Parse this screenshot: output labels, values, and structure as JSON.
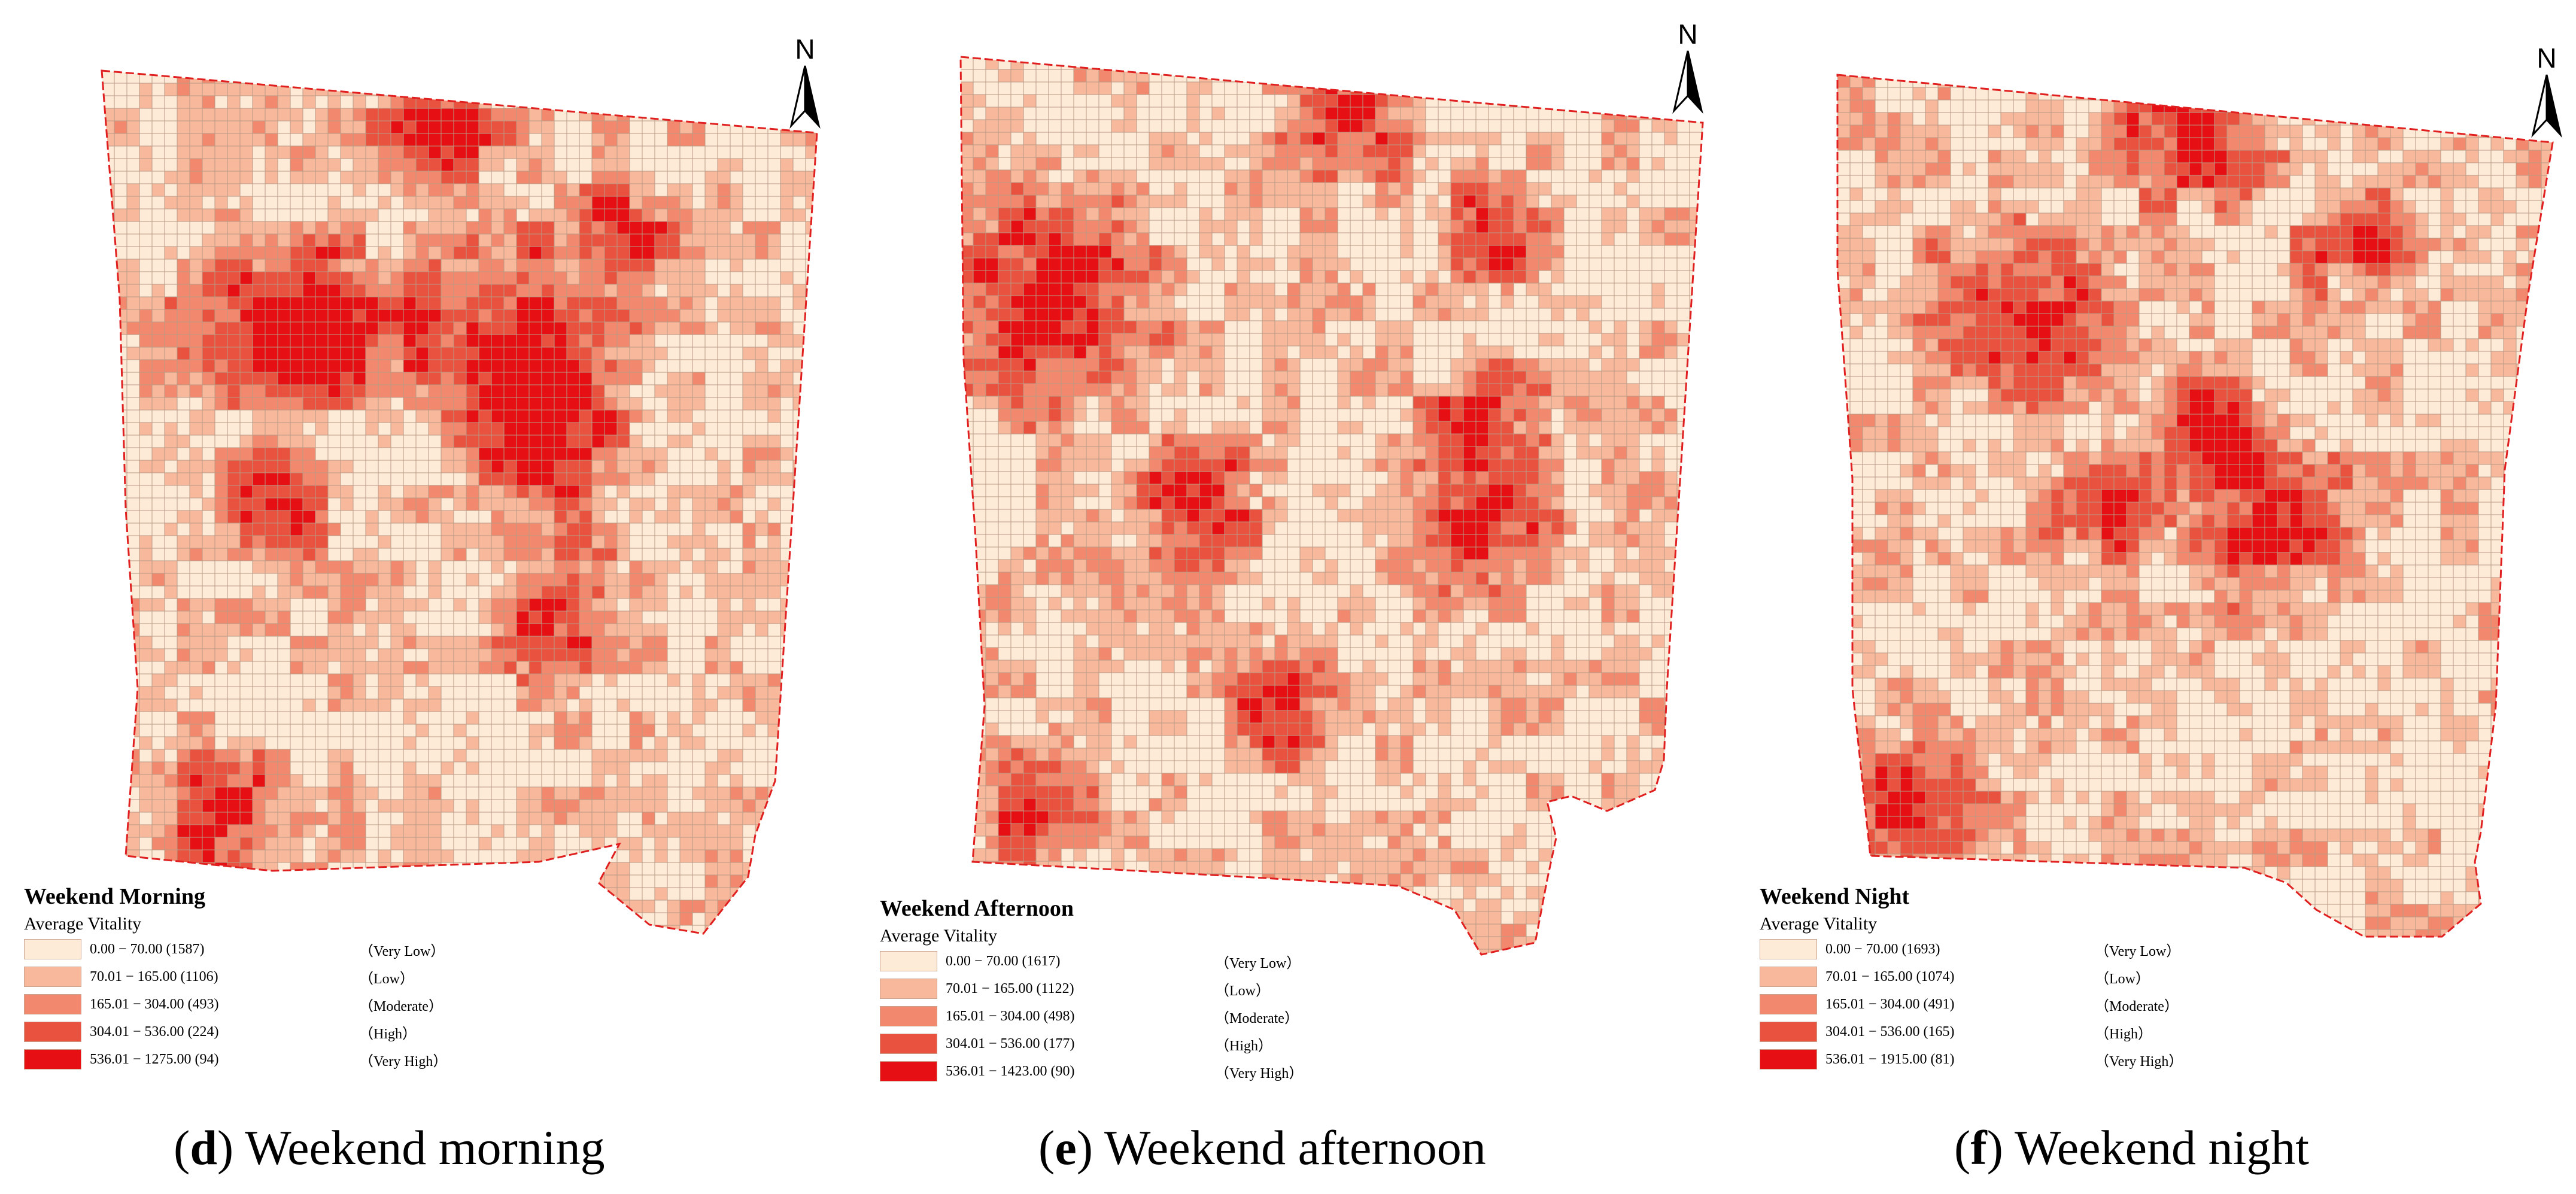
{
  "colors": {
    "very_low": "#fdebd7",
    "low": "#f8b89c",
    "moderate": "#f2896e",
    "high": "#e8523f",
    "very_high": "#e60f14",
    "boundary": "#e02020",
    "grid_line": "#b89a84"
  },
  "panels": [
    {
      "id": "d",
      "legend_title": "Weekend Morning",
      "legend_subtitle": "Average Vitality",
      "classes": [
        {
          "range": "0.00 − 70.00 (1587)",
          "label": "（Very Low）"
        },
        {
          "range": "70.01 − 165.00 (1106)",
          "label": "（Low）"
        },
        {
          "range": "165.01 − 304.00 (493)",
          "label": "（Moderate）"
        },
        {
          "range": "304.01 − 536.00 (224)",
          "label": "（High）"
        },
        {
          "range": "536.01 − 1275.00 (94)",
          "label": "（Very High）"
        }
      ],
      "north": "N",
      "caption_letter": "d",
      "caption_text": "Weekend morning"
    },
    {
      "id": "e",
      "legend_title": "Weekend Afternoon",
      "legend_subtitle": "Average Vitality",
      "classes": [
        {
          "range": "0.00 − 70.00 (1617)",
          "label": "（Very Low）"
        },
        {
          "range": "70.01 − 165.00 (1122)",
          "label": "（Low）"
        },
        {
          "range": "165.01 − 304.00 (498)",
          "label": "（Moderate）"
        },
        {
          "range": "304.01 − 536.00 (177)",
          "label": "（High）"
        },
        {
          "range": "536.01 − 1423.00 (90)",
          "label": "（Very High）"
        }
      ],
      "north": "N",
      "caption_letter": "e",
      "caption_text": "Weekend afternoon"
    },
    {
      "id": "f",
      "legend_title": "Weekend Night",
      "legend_subtitle": "Average Vitality",
      "classes": [
        {
          "range": "0.00 − 70.00 (1693)",
          "label": "（Very Low）"
        },
        {
          "range": "70.01 − 165.00 (1074)",
          "label": "（Low）"
        },
        {
          "range": "165.01 − 304.00 (491)",
          "label": "（Moderate）"
        },
        {
          "range": "304.01 − 536.00 (165)",
          "label": "（High）"
        },
        {
          "range": "536.01 − 1915.00 (81)",
          "label": "（Very High）"
        }
      ],
      "north": "N",
      "caption_letter": "f",
      "caption_text": "Weekend night"
    }
  ]
}
